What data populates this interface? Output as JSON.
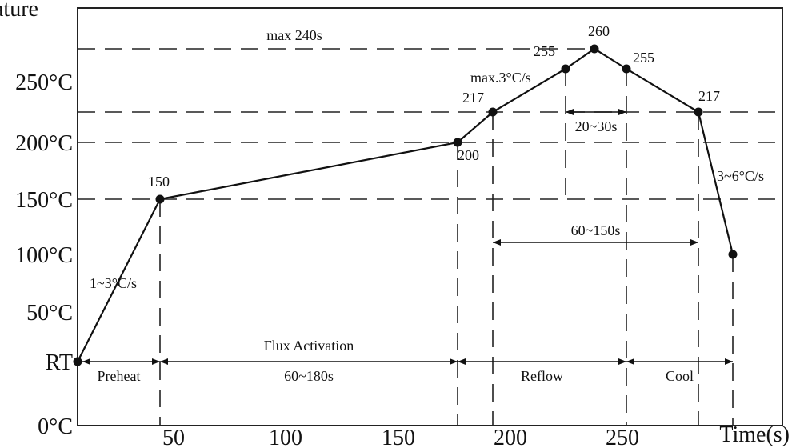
{
  "chart_data": {
    "type": "line",
    "title": "",
    "ylabel": "ature",
    "xlabel": "Time(s)",
    "yticks": [
      {
        "label": "0°C",
        "value": 0
      },
      {
        "label": "RT",
        "value": 25
      },
      {
        "label": "50°C",
        "value": 50
      },
      {
        "label": "100°C",
        "value": 100
      },
      {
        "label": "150°C",
        "value": 150
      },
      {
        "label": "200°C",
        "value": 200
      },
      {
        "label": "250°C",
        "value": 250
      }
    ],
    "xticks": [
      {
        "label": "50",
        "value": 50
      },
      {
        "label": "100",
        "value": 100
      },
      {
        "label": "150",
        "value": 150
      },
      {
        "label": "200",
        "value": 200
      },
      {
        "label": "250",
        "value": 250
      }
    ],
    "xlim": [
      0,
      285
    ],
    "ylim": [
      0,
      285
    ],
    "points": [
      {
        "x": 0,
        "y": 25,
        "label": ""
      },
      {
        "x": 48,
        "y": 150,
        "label": "150"
      },
      {
        "x": 176,
        "y": 200,
        "label": "200"
      },
      {
        "x": 190,
        "y": 217,
        "label": "217"
      },
      {
        "x": 222,
        "y": 255,
        "label": "255"
      },
      {
        "x": 238,
        "y": 260,
        "label": "260"
      },
      {
        "x": 248,
        "y": 255,
        "label": "255"
      },
      {
        "x": 280,
        "y": 217,
        "label": "217"
      },
      {
        "x": 295,
        "y": 100,
        "label": ""
      }
    ],
    "dashed_levels": [
      150,
      200,
      217,
      260
    ],
    "annotations": {
      "max_time": "max 240s",
      "ramp_up": "max.3°C/s",
      "peak_window": "20~30s",
      "above_liquidus": "60~150s",
      "ramp_down": "3~6°C/s",
      "preheat_rate": "1~3°C/s",
      "flux_activation": "Flux Activation",
      "soak_time": "60~180s"
    },
    "phases": [
      "Preheat",
      "Reflow",
      "Cool"
    ],
    "grid": false,
    "legend": "none"
  }
}
